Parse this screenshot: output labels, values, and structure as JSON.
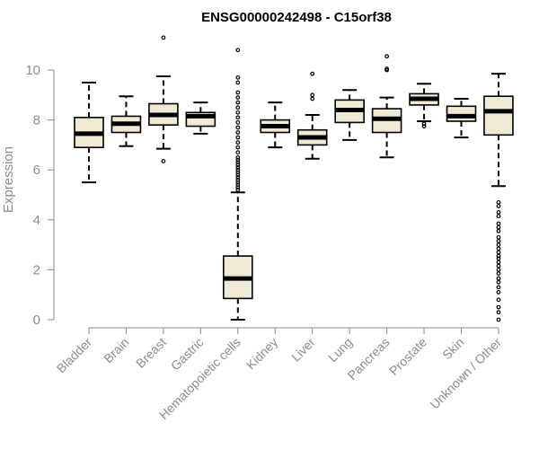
{
  "chart_data": {
    "type": "boxplot",
    "title": "ENSG00000242498 - C15orf38",
    "xlabel": "",
    "ylabel": "Expression",
    "ylim": [
      0,
      10.5
    ],
    "yticks": [
      "0",
      "2",
      "4",
      "6",
      "8",
      "10"
    ],
    "box_fill": "#efe9d6",
    "categories": [
      "Bladder",
      "Brain",
      "Breast",
      "Gastric",
      "Hematopoietic cells",
      "Kidney",
      "Liver",
      "Lung",
      "Pancreas",
      "Prostate",
      "Skin",
      "Unknown / Other"
    ],
    "boxes": [
      {
        "name": "Bladder",
        "whisker_low": 5.5,
        "q1": 6.9,
        "median": 7.45,
        "q3": 8.1,
        "whisker_high": 9.5,
        "outliers": []
      },
      {
        "name": "Brain",
        "whisker_low": 6.95,
        "q1": 7.5,
        "median": 7.85,
        "q3": 8.15,
        "whisker_high": 8.95,
        "outliers": []
      },
      {
        "name": "Breast",
        "whisker_low": 6.85,
        "q1": 7.8,
        "median": 8.2,
        "q3": 8.65,
        "whisker_high": 9.75,
        "outliers": [
          11.3,
          6.35
        ]
      },
      {
        "name": "Gastric",
        "whisker_low": 7.45,
        "q1": 7.75,
        "median": 8.15,
        "q3": 8.3,
        "whisker_high": 8.7,
        "outliers": []
      },
      {
        "name": "Hematopoietic cells",
        "whisker_low": 0.0,
        "q1": 0.85,
        "median": 1.65,
        "q3": 2.55,
        "whisker_high": 5.1,
        "outliers": [
          10.8,
          9.7,
          9.5,
          9.1,
          8.9,
          8.7,
          8.5,
          8.3,
          8.1,
          7.9,
          7.7,
          7.5,
          7.3,
          7.1,
          6.9,
          6.7,
          6.5,
          6.4,
          6.3,
          6.2,
          6.1,
          6.0,
          5.9,
          5.8,
          5.7,
          5.6,
          5.5,
          5.4,
          5.3,
          5.2
        ]
      },
      {
        "name": "Kidney",
        "whisker_low": 6.9,
        "q1": 7.5,
        "median": 7.75,
        "q3": 8.0,
        "whisker_high": 8.7,
        "outliers": []
      },
      {
        "name": "Liver",
        "whisker_low": 6.45,
        "q1": 7.0,
        "median": 7.3,
        "q3": 7.6,
        "whisker_high": 8.2,
        "outliers": [
          9.85,
          9.0,
          8.85
        ]
      },
      {
        "name": "Lung",
        "whisker_low": 7.2,
        "q1": 7.9,
        "median": 8.4,
        "q3": 8.8,
        "whisker_high": 9.2,
        "outliers": []
      },
      {
        "name": "Pancreas",
        "whisker_low": 6.5,
        "q1": 7.5,
        "median": 8.05,
        "q3": 8.45,
        "whisker_high": 8.9,
        "outliers": [
          10.55,
          10.05,
          10.0
        ]
      },
      {
        "name": "Prostate",
        "whisker_low": 7.95,
        "q1": 8.6,
        "median": 8.85,
        "q3": 9.05,
        "whisker_high": 9.45,
        "outliers": [
          7.85,
          7.75
        ]
      },
      {
        "name": "Skin",
        "whisker_low": 7.3,
        "q1": 7.95,
        "median": 8.15,
        "q3": 8.55,
        "whisker_high": 8.85,
        "outliers": []
      },
      {
        "name": "Unknown / Other",
        "whisker_low": 5.35,
        "q1": 7.4,
        "median": 8.35,
        "q3": 8.95,
        "whisker_high": 9.85,
        "outliers": [
          4.7,
          4.55,
          4.3,
          4.15,
          3.85,
          3.7,
          3.55,
          3.3,
          3.15,
          3.0,
          2.85,
          2.7,
          2.55,
          2.45,
          2.3,
          2.15,
          2.0,
          1.85,
          1.65,
          1.5,
          1.3,
          1.1,
          0.8,
          0.5,
          0.3,
          0.0
        ]
      }
    ]
  }
}
